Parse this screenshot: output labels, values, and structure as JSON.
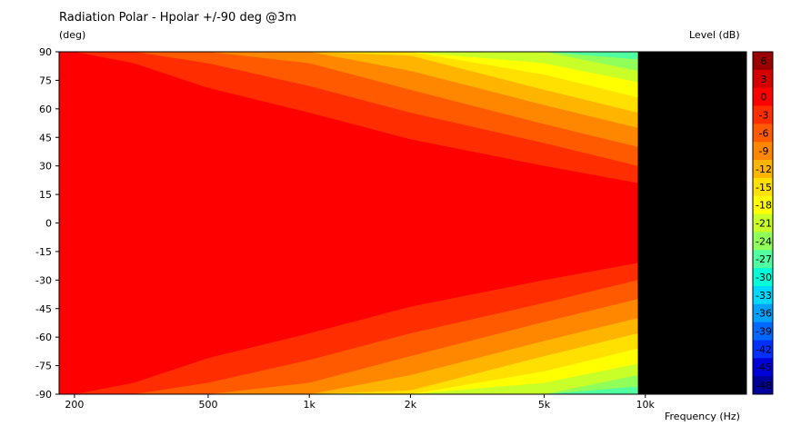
{
  "chart_data": {
    "type": "heatmap",
    "title": "Radiation Polar - Hpolar +/-90 deg @3m",
    "ylabel": "(deg)",
    "xlabel": "Frequency  (Hz)",
    "colorbar_label": "Level  (dB)",
    "x_scale": "log",
    "xlim": [
      180,
      20000
    ],
    "ylim": [
      -90,
      90
    ],
    "x_ticks": [
      {
        "value": 200,
        "label": "200"
      },
      {
        "value": 500,
        "label": "500"
      },
      {
        "value": 1000,
        "label": "1k"
      },
      {
        "value": 2000,
        "label": "2k"
      },
      {
        "value": 5000,
        "label": "5k"
      },
      {
        "value": 10000,
        "label": "10k"
      }
    ],
    "y_ticks": [
      {
        "value": 90,
        "label": "90"
      },
      {
        "value": 75,
        "label": "75"
      },
      {
        "value": 60,
        "label": "60"
      },
      {
        "value": 45,
        "label": "45"
      },
      {
        "value": 30,
        "label": "30"
      },
      {
        "value": 15,
        "label": "15"
      },
      {
        "value": 0,
        "label": "0"
      },
      {
        "value": -15,
        "label": "-15"
      },
      {
        "value": -30,
        "label": "-30"
      },
      {
        "value": -45,
        "label": "-45"
      },
      {
        "value": -60,
        "label": "-60"
      },
      {
        "value": -75,
        "label": "-75"
      },
      {
        "value": -90,
        "label": "-90"
      }
    ],
    "data_x_max": 9500,
    "colorbar": [
      {
        "value": 6,
        "label": "6",
        "color": "#9b0000"
      },
      {
        "value": 3,
        "label": "3",
        "color": "#d40000"
      },
      {
        "value": 0,
        "label": "0",
        "color": "#ff0000"
      },
      {
        "value": -3,
        "label": "-3",
        "color": "#ff2d00"
      },
      {
        "value": -6,
        "label": "-6",
        "color": "#ff5a00"
      },
      {
        "value": -9,
        "label": "-9",
        "color": "#ff8700"
      },
      {
        "value": -12,
        "label": "-12",
        "color": "#ffb400"
      },
      {
        "value": -15,
        "label": "-15",
        "color": "#ffe000"
      },
      {
        "value": -18,
        "label": "-18",
        "color": "#ffff00"
      },
      {
        "value": -21,
        "label": "-21",
        "color": "#c8ff28"
      },
      {
        "value": -24,
        "label": "-24",
        "color": "#90ff5a"
      },
      {
        "value": -27,
        "label": "-27",
        "color": "#50ffa0"
      },
      {
        "value": -30,
        "label": "-30",
        "color": "#00ffd8"
      },
      {
        "value": -33,
        "label": "-33",
        "color": "#00d8ff"
      },
      {
        "value": -36,
        "label": "-36",
        "color": "#00a0ff"
      },
      {
        "value": -39,
        "label": "-39",
        "color": "#0068ff"
      },
      {
        "value": -42,
        "label": "-42",
        "color": "#0030ff"
      },
      {
        "value": -45,
        "label": "-45",
        "color": "#0000d8"
      },
      {
        "value": -48,
        "label": "-48",
        "color": "#00009b"
      }
    ],
    "level_contours": [
      {
        "level": -3,
        "angles_at_freq": [
          [
            200,
            90
          ],
          [
            300,
            84
          ],
          [
            500,
            71
          ],
          [
            1000,
            58
          ],
          [
            2000,
            44
          ],
          [
            5000,
            30
          ],
          [
            9500,
            21
          ]
        ]
      },
      {
        "level": -6,
        "angles_at_freq": [
          [
            200,
            90
          ],
          [
            300,
            90
          ],
          [
            500,
            84
          ],
          [
            1000,
            72
          ],
          [
            2000,
            58
          ],
          [
            5000,
            42
          ],
          [
            9500,
            30
          ]
        ]
      },
      {
        "level": -9,
        "angles_at_freq": [
          [
            200,
            90
          ],
          [
            300,
            90
          ],
          [
            500,
            90
          ],
          [
            1000,
            84
          ],
          [
            2000,
            70
          ],
          [
            5000,
            52
          ],
          [
            9500,
            40
          ]
        ]
      },
      {
        "level": -12,
        "angles_at_freq": [
          [
            200,
            90
          ],
          [
            300,
            90
          ],
          [
            500,
            90
          ],
          [
            1000,
            90
          ],
          [
            2000,
            80
          ],
          [
            5000,
            62
          ],
          [
            9500,
            50
          ]
        ]
      },
      {
        "level": -15,
        "angles_at_freq": [
          [
            200,
            90
          ],
          [
            300,
            90
          ],
          [
            500,
            90
          ],
          [
            1000,
            90
          ],
          [
            2000,
            88
          ],
          [
            5000,
            70
          ],
          [
            9500,
            58
          ]
        ]
      },
      {
        "level": -18,
        "angles_at_freq": [
          [
            200,
            90
          ],
          [
            300,
            90
          ],
          [
            500,
            90
          ],
          [
            1000,
            90
          ],
          [
            2000,
            90
          ],
          [
            5000,
            78
          ],
          [
            9500,
            66
          ]
        ]
      },
      {
        "level": -21,
        "angles_at_freq": [
          [
            200,
            90
          ],
          [
            300,
            90
          ],
          [
            500,
            90
          ],
          [
            1000,
            90
          ],
          [
            2000,
            90
          ],
          [
            5000,
            84
          ],
          [
            9500,
            74
          ]
        ]
      },
      {
        "level": -24,
        "angles_at_freq": [
          [
            200,
            90
          ],
          [
            300,
            90
          ],
          [
            500,
            90
          ],
          [
            1000,
            90
          ],
          [
            2000,
            90
          ],
          [
            5000,
            90
          ],
          [
            9500,
            80
          ]
        ]
      },
      {
        "level": -27,
        "angles_at_freq": [
          [
            200,
            90
          ],
          [
            300,
            90
          ],
          [
            500,
            90
          ],
          [
            1000,
            90
          ],
          [
            2000,
            90
          ],
          [
            5000,
            90
          ],
          [
            9500,
            86
          ]
        ]
      }
    ]
  }
}
